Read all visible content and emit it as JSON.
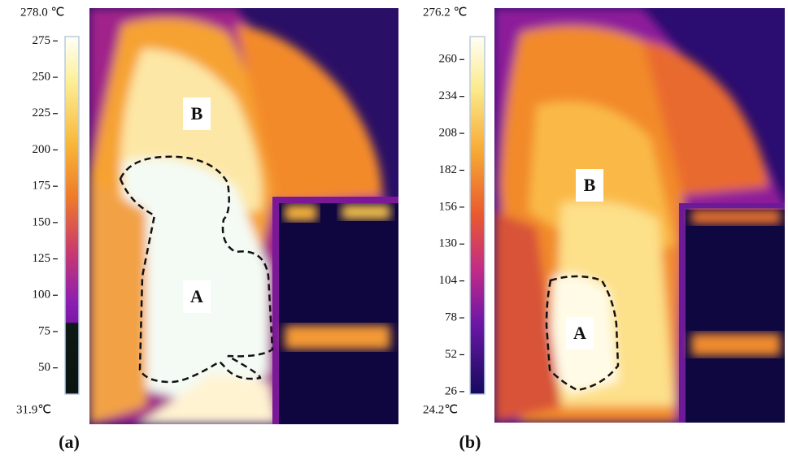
{
  "panels": [
    {
      "caption": "(a)",
      "max": {
        "value": 278.0,
        "label": "278.0 ℃"
      },
      "min": {
        "value": 31.9,
        "label": "31.9℃"
      },
      "ticks": [
        275,
        250,
        225,
        200,
        175,
        150,
        125,
        100,
        75,
        50
      ],
      "regions": [
        "B",
        "A"
      ]
    },
    {
      "caption": "(b)",
      "max": {
        "value": 276.2,
        "label": "276.2 ℃"
      },
      "min": {
        "value": 24.2,
        "label": "24.2℃"
      },
      "ticks": [
        260,
        234,
        208,
        182,
        156,
        130,
        104,
        78,
        52,
        26
      ],
      "regions": [
        "B",
        "A"
      ]
    }
  ]
}
